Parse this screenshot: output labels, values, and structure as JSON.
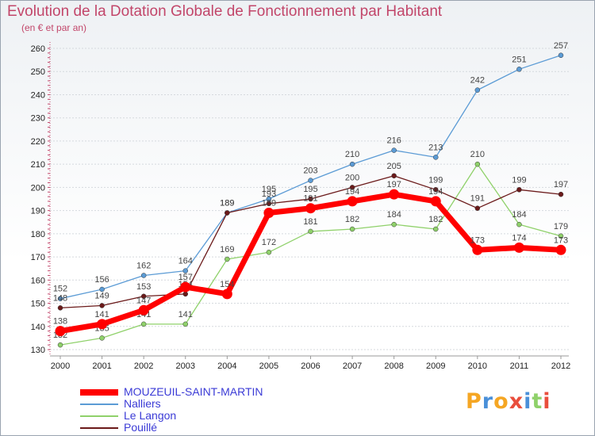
{
  "chart_data": {
    "type": "line",
    "title": "Evolution de la Dotation Globale de Fonctionnement par Habitant",
    "subtitle": "(en € et par an)",
    "x": [
      "2000",
      "2001",
      "2002",
      "2003",
      "2004",
      "2005",
      "2006",
      "2007",
      "2008",
      "2009",
      "2010",
      "2011",
      "2012"
    ],
    "ylim": [
      130,
      260
    ],
    "yticks": [
      130,
      140,
      150,
      160,
      170,
      180,
      190,
      200,
      210,
      220,
      230,
      240,
      250,
      260
    ],
    "grid": true,
    "legend_position": "bottom-left",
    "series": [
      {
        "name": "Nalliers",
        "color": "#5b9bd5",
        "values": [
          152,
          156,
          162,
          164,
          189,
          195,
          203,
          210,
          216,
          213,
          242,
          251,
          257
        ]
      },
      {
        "name": "Le Langon",
        "color": "#8fd16a",
        "values": [
          132,
          135,
          141,
          141,
          169,
          172,
          181,
          182,
          184,
          182,
          210,
          184,
          179
        ]
      },
      {
        "name": "Pouillé",
        "color": "#6b1a1a",
        "values": [
          148,
          149,
          153,
          154,
          189,
          193,
          195,
          200,
          205,
          199,
          191,
          199,
          197
        ]
      },
      {
        "name": "MOUZEUIL-SAINT-MARTIN",
        "color": "#ff0000",
        "values": [
          138,
          141,
          147,
          157,
          154,
          189,
          191,
          194,
          197,
          194,
          173,
          174,
          173
        ]
      }
    ]
  },
  "legend": [
    {
      "name": "MOUZEUIL-SAINT-MARTIN",
      "color": "#ff0000",
      "text_color": "#3b3bd6",
      "thick": true
    },
    {
      "name": "Nalliers",
      "color": "#5b9bd5",
      "text_color": "#3b3bd6",
      "thick": false
    },
    {
      "name": "Le Langon",
      "color": "#8fd16a",
      "text_color": "#3b3bd6",
      "thick": false
    },
    {
      "name": "Pouillé",
      "color": "#6b1a1a",
      "text_color": "#3b3bd6",
      "thick": false
    }
  ],
  "logo": {
    "text": "Proxiti",
    "colors": [
      "#f5a623",
      "#4a90d9",
      "#f5a623",
      "#e94e3c",
      "#4a90d9",
      "#8fd16a",
      "#e94e3c"
    ]
  }
}
